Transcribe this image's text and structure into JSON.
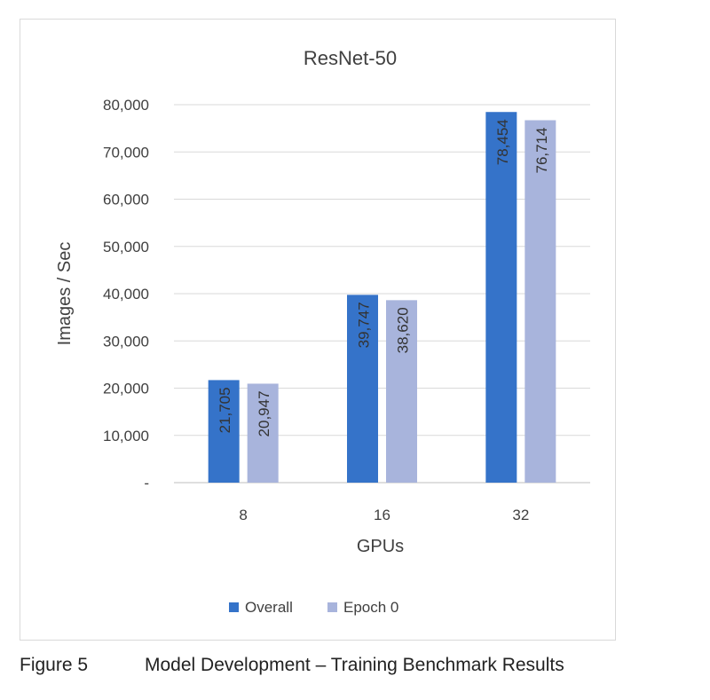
{
  "chart_data": {
    "type": "bar",
    "title": "ResNet-50",
    "xlabel": "GPUs",
    "ylabel": "Images / Sec",
    "categories": [
      "8",
      "16",
      "32"
    ],
    "series": [
      {
        "name": "Overall",
        "values": [
          21705,
          39747,
          78454
        ],
        "labels": [
          "21,705",
          "39,747",
          "78,454"
        ],
        "color": "#3573c9"
      },
      {
        "name": "Epoch 0",
        "values": [
          20947,
          38620,
          76714
        ],
        "labels": [
          "20,947",
          "38,620",
          "76,714"
        ],
        "color": "#a8b4dc"
      }
    ],
    "ylim": [
      0,
      80000
    ],
    "yticks": [
      0,
      10000,
      20000,
      30000,
      40000,
      50000,
      60000,
      70000,
      80000
    ],
    "ytick_labels": [
      "-",
      "10,000",
      "20,000",
      "30,000",
      "40,000",
      "50,000",
      "60,000",
      "70,000",
      "80,000"
    ],
    "grid": true,
    "legend_position": "bottom"
  },
  "caption": {
    "figure_label": "Figure 5",
    "text": "Model Development – Training Benchmark Results"
  }
}
